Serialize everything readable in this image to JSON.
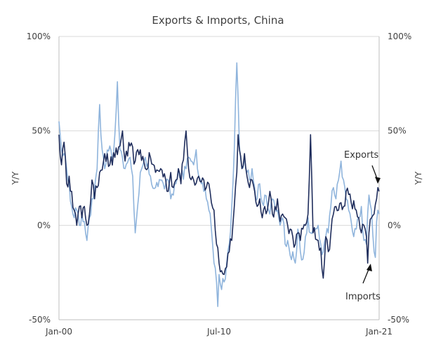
{
  "chart_data": {
    "type": "line",
    "title": "Exports & Imports, China",
    "ylabel_left": "Y/Y",
    "ylabel_right": "Y/Y",
    "ylim": [
      -50,
      100
    ],
    "yticks": [
      100,
      50,
      0,
      -50
    ],
    "ytick_labels": [
      "100%",
      "50%",
      "0%",
      "-50%"
    ],
    "x_start": "Jan-00",
    "x_end": "Jan-21",
    "xtick_labels": [
      "Jan-00",
      "Jul-10",
      "Jan-21"
    ],
    "xtick_positions": [
      0,
      126,
      252
    ],
    "grid": true,
    "colors": {
      "exports": "#1f2d5c",
      "imports": "#8fb4dc",
      "grid": "#d9d9d9"
    },
    "annotations": [
      {
        "text": "Exports",
        "series": "Exports"
      },
      {
        "text": "Imports",
        "series": "Imports"
      }
    ],
    "series": [
      {
        "name": "Exports",
        "color": "#1f2d5c",
        "anchors": [
          [
            0,
            48
          ],
          [
            2,
            32
          ],
          [
            4,
            44
          ],
          [
            6,
            22
          ],
          [
            8,
            26
          ],
          [
            10,
            18
          ],
          [
            12,
            8
          ],
          [
            14,
            0
          ],
          [
            16,
            10
          ],
          [
            18,
            4
          ],
          [
            20,
            10
          ],
          [
            22,
            0
          ],
          [
            24,
            6
          ],
          [
            26,
            24
          ],
          [
            28,
            14
          ],
          [
            30,
            20
          ],
          [
            32,
            28
          ],
          [
            36,
            38
          ],
          [
            40,
            32
          ],
          [
            44,
            36
          ],
          [
            48,
            42
          ],
          [
            50,
            50
          ],
          [
            52,
            34
          ],
          [
            56,
            42
          ],
          [
            60,
            34
          ],
          [
            64,
            40
          ],
          [
            68,
            30
          ],
          [
            72,
            36
          ],
          [
            76,
            28
          ],
          [
            80,
            30
          ],
          [
            84,
            24
          ],
          [
            86,
            18
          ],
          [
            88,
            28
          ],
          [
            90,
            20
          ],
          [
            92,
            24
          ],
          [
            94,
            30
          ],
          [
            96,
            22
          ],
          [
            100,
            50
          ],
          [
            102,
            30
          ],
          [
            106,
            24
          ],
          [
            110,
            26
          ],
          [
            114,
            24
          ],
          [
            116,
            20
          ],
          [
            118,
            22
          ],
          [
            120,
            12
          ],
          [
            122,
            8
          ],
          [
            124,
            -10
          ],
          [
            126,
            -20
          ],
          [
            128,
            -24
          ],
          [
            130,
            -26
          ],
          [
            132,
            -22
          ],
          [
            134,
            -14
          ],
          [
            136,
            -8
          ],
          [
            138,
            10
          ],
          [
            140,
            28
          ],
          [
            141,
            48
          ],
          [
            142,
            40
          ],
          [
            144,
            30
          ],
          [
            146,
            38
          ],
          [
            148,
            26
          ],
          [
            150,
            20
          ],
          [
            152,
            24
          ],
          [
            154,
            18
          ],
          [
            156,
            10
          ],
          [
            158,
            14
          ],
          [
            160,
            4
          ],
          [
            162,
            10
          ],
          [
            164,
            8
          ],
          [
            166,
            18
          ],
          [
            168,
            6
          ],
          [
            170,
            10
          ],
          [
            172,
            14
          ],
          [
            174,
            2
          ],
          [
            176,
            6
          ],
          [
            178,
            4
          ],
          [
            180,
            0
          ],
          [
            182,
            -2
          ],
          [
            184,
            -6
          ],
          [
            186,
            -10
          ],
          [
            188,
            -4
          ],
          [
            190,
            -8
          ],
          [
            192,
            -2
          ],
          [
            194,
            0
          ],
          [
            196,
            6
          ],
          [
            198,
            48
          ],
          [
            200,
            -4
          ],
          [
            204,
            -8
          ],
          [
            206,
            -12
          ],
          [
            208,
            -28
          ],
          [
            210,
            -6
          ],
          [
            212,
            -14
          ],
          [
            216,
            6
          ],
          [
            218,
            10
          ],
          [
            220,
            8
          ],
          [
            222,
            12
          ],
          [
            224,
            10
          ],
          [
            226,
            18
          ],
          [
            230,
            12
          ],
          [
            234,
            8
          ],
          [
            236,
            4
          ],
          [
            238,
            -4
          ],
          [
            240,
            0
          ],
          [
            242,
            -6
          ],
          [
            243,
            -20
          ],
          [
            244,
            -4
          ],
          [
            246,
            4
          ],
          [
            248,
            6
          ],
          [
            250,
            14
          ],
          [
            251,
            20
          ],
          [
            252,
            18
          ]
        ]
      },
      {
        "name": "Imports",
        "color": "#8fb4dc",
        "anchors": [
          [
            0,
            55
          ],
          [
            2,
            40
          ],
          [
            4,
            38
          ],
          [
            6,
            30
          ],
          [
            8,
            22
          ],
          [
            10,
            10
          ],
          [
            12,
            4
          ],
          [
            14,
            8
          ],
          [
            16,
            0
          ],
          [
            18,
            6
          ],
          [
            20,
            2
          ],
          [
            22,
            -8
          ],
          [
            24,
            4
          ],
          [
            26,
            14
          ],
          [
            28,
            20
          ],
          [
            30,
            30
          ],
          [
            32,
            64
          ],
          [
            34,
            40
          ],
          [
            36,
            30
          ],
          [
            40,
            42
          ],
          [
            42,
            34
          ],
          [
            44,
            48
          ],
          [
            46,
            76
          ],
          [
            48,
            40
          ],
          [
            52,
            30
          ],
          [
            56,
            36
          ],
          [
            58,
            26
          ],
          [
            60,
            -4
          ],
          [
            64,
            28
          ],
          [
            68,
            36
          ],
          [
            72,
            26
          ],
          [
            76,
            20
          ],
          [
            80,
            24
          ],
          [
            84,
            22
          ],
          [
            86,
            24
          ],
          [
            88,
            14
          ],
          [
            90,
            16
          ],
          [
            92,
            22
          ],
          [
            94,
            30
          ],
          [
            96,
            26
          ],
          [
            100,
            30
          ],
          [
            102,
            36
          ],
          [
            104,
            34
          ],
          [
            106,
            32
          ],
          [
            108,
            40
          ],
          [
            110,
            26
          ],
          [
            112,
            22
          ],
          [
            114,
            18
          ],
          [
            116,
            14
          ],
          [
            118,
            8
          ],
          [
            120,
            -2
          ],
          [
            122,
            -20
          ],
          [
            124,
            -30
          ],
          [
            125,
            -43
          ],
          [
            126,
            -26
          ],
          [
            128,
            -34
          ],
          [
            130,
            -30
          ],
          [
            132,
            -20
          ],
          [
            134,
            -10
          ],
          [
            136,
            10
          ],
          [
            138,
            40
          ],
          [
            140,
            86
          ],
          [
            142,
            42
          ],
          [
            144,
            30
          ],
          [
            146,
            36
          ],
          [
            148,
            28
          ],
          [
            150,
            24
          ],
          [
            152,
            30
          ],
          [
            154,
            20
          ],
          [
            156,
            14
          ],
          [
            158,
            22
          ],
          [
            160,
            12
          ],
          [
            162,
            16
          ],
          [
            164,
            10
          ],
          [
            166,
            6
          ],
          [
            168,
            14
          ],
          [
            170,
            10
          ],
          [
            172,
            8
          ],
          [
            174,
            0
          ],
          [
            176,
            4
          ],
          [
            178,
            -10
          ],
          [
            180,
            -8
          ],
          [
            182,
            -16
          ],
          [
            184,
            -14
          ],
          [
            186,
            -20
          ],
          [
            188,
            -2
          ],
          [
            190,
            -14
          ],
          [
            192,
            -18
          ],
          [
            194,
            -6
          ],
          [
            196,
            4
          ],
          [
            198,
            -4
          ],
          [
            200,
            -2
          ],
          [
            204,
            0
          ],
          [
            206,
            -10
          ],
          [
            208,
            -14
          ],
          [
            210,
            -6
          ],
          [
            212,
            -4
          ],
          [
            214,
            10
          ],
          [
            216,
            20
          ],
          [
            218,
            14
          ],
          [
            220,
            24
          ],
          [
            222,
            34
          ],
          [
            224,
            24
          ],
          [
            226,
            14
          ],
          [
            228,
            8
          ],
          [
            230,
            2
          ],
          [
            232,
            -6
          ],
          [
            234,
            -2
          ],
          [
            236,
            4
          ],
          [
            238,
            10
          ],
          [
            240,
            -8
          ],
          [
            242,
            -10
          ],
          [
            244,
            16
          ],
          [
            246,
            8
          ],
          [
            248,
            -14
          ],
          [
            249,
            -17
          ],
          [
            250,
            2
          ],
          [
            251,
            8
          ],
          [
            252,
            6
          ]
        ]
      }
    ]
  }
}
